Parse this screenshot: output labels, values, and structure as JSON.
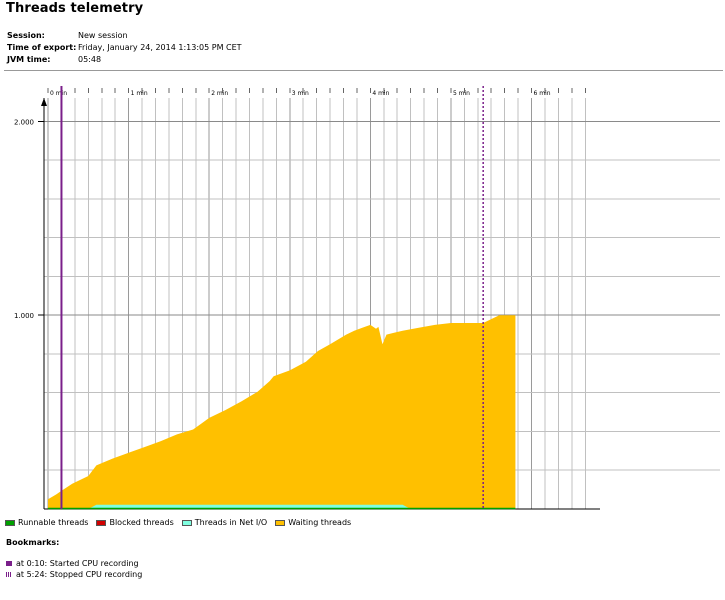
{
  "title": "Threads telemetry",
  "session": {
    "label": "Session:",
    "value": "New session"
  },
  "export_time": {
    "label": "Time of export:",
    "value": "Friday, January 24, 2014 1:13:05 PM CET"
  },
  "jvm_time": {
    "label": "JVM time:",
    "value": "05:48"
  },
  "bookmarks_title": "Bookmarks:",
  "bookmarks": [
    {
      "text": "at 0:10: Started CPU recording",
      "time_min": 0.1667,
      "style": "solid"
    },
    {
      "text": "at 5:24: Stopped CPU recording",
      "time_min": 5.4,
      "style": "dotted"
    }
  ],
  "colors": {
    "runnable": "#00a000",
    "blocked": "#d00000",
    "netio": "#80ffe0",
    "waiting": "#ffc000",
    "bookmark": "#7a1f8a",
    "grid": "#c0c0c0"
  },
  "chart_data": {
    "type": "area",
    "x_tick_labels": [
      "0 min",
      "1 min",
      "2 min",
      "3 min",
      "4 min",
      "5 min",
      "6 min"
    ],
    "y_tick_labels": [
      "2.000",
      "1.000"
    ],
    "xlim": [
      -0.05,
      6.8
    ],
    "ylim": [
      0,
      2100
    ],
    "grid": true,
    "legend_position": "bottom-left",
    "series": [
      {
        "name": "Runnable threads",
        "color_key": "runnable",
        "x": [
          0,
          5.8
        ],
        "y": [
          2,
          2
        ]
      },
      {
        "name": "Blocked threads",
        "color_key": "blocked",
        "x": [],
        "y": []
      },
      {
        "name": "Threads in Net I/O",
        "color_key": "netio",
        "x": [
          0.5,
          0.6,
          4.4,
          4.5
        ],
        "y": [
          0,
          22,
          22,
          0
        ]
      },
      {
        "name": "Waiting threads",
        "color_key": "waiting",
        "x": [
          0,
          0.1,
          0.17,
          0.3,
          0.5,
          0.6,
          0.8,
          1.0,
          1.2,
          1.4,
          1.6,
          1.8,
          1.9,
          2.0,
          2.2,
          2.4,
          2.6,
          2.75,
          2.8,
          3.0,
          3.2,
          3.35,
          3.5,
          3.7,
          3.8,
          3.9,
          4.0,
          4.07,
          4.1,
          4.15,
          4.2,
          4.3,
          4.4,
          4.6,
          4.8,
          5.0,
          5.2,
          5.4,
          5.5,
          5.6,
          5.8
        ],
        "y": [
          50,
          75,
          95,
          130,
          170,
          225,
          260,
          290,
          320,
          350,
          385,
          410,
          440,
          470,
          510,
          555,
          605,
          660,
          685,
          715,
          760,
          815,
          850,
          900,
          920,
          935,
          950,
          930,
          940,
          850,
          900,
          910,
          920,
          935,
          950,
          960,
          960,
          960,
          980,
          1000,
          1000
        ]
      }
    ]
  }
}
